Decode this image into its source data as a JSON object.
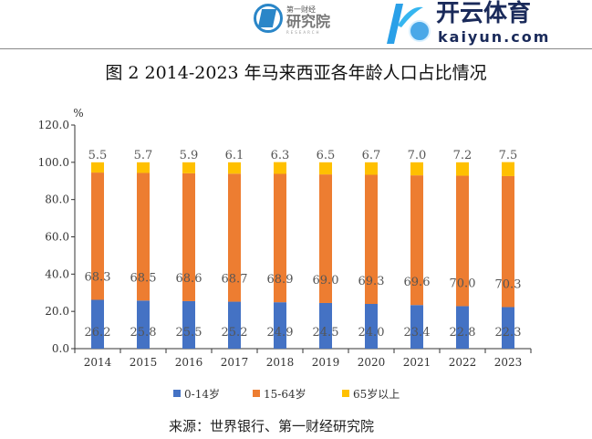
{
  "header": {
    "logo_small": "第一财经",
    "logo_main": "研究院",
    "logo_en": "RESEARCH"
  },
  "title": "图 2 2014-2023 年马来西亚各年龄人口占比情况",
  "source": "来源：世界银行、第一财经研究院",
  "watermark": {
    "cn": "开云体育",
    "en": "kaiyun.com"
  },
  "colors": {
    "c0_14": "#4472c4",
    "c15_64": "#ed7d31",
    "c65": "#ffc000"
  },
  "chart_data": {
    "type": "bar",
    "stacked": true,
    "title": "图 2 2014-2023 年马来西亚各年龄人口占比情况",
    "ylabel": "%",
    "ylim": [
      0,
      120
    ],
    "yticks": [
      "0.0",
      "20.0",
      "40.0",
      "60.0",
      "80.0",
      "100.0",
      "120.0"
    ],
    "categories": [
      "2014",
      "2015",
      "2016",
      "2017",
      "2018",
      "2019",
      "2020",
      "2021",
      "2022",
      "2023"
    ],
    "series": [
      {
        "name": "0-14岁",
        "values": [
          26.2,
          25.8,
          25.5,
          25.2,
          24.9,
          24.5,
          24.0,
          23.4,
          22.8,
          22.3
        ]
      },
      {
        "name": "15-64岁",
        "values": [
          68.3,
          68.5,
          68.6,
          68.7,
          68.9,
          69.0,
          69.3,
          69.6,
          70.0,
          70.3
        ]
      },
      {
        "name": "65岁以上",
        "values": [
          5.5,
          5.7,
          5.9,
          6.1,
          6.3,
          6.5,
          6.7,
          7.0,
          7.2,
          7.5
        ]
      }
    ],
    "legend_position": "bottom"
  }
}
